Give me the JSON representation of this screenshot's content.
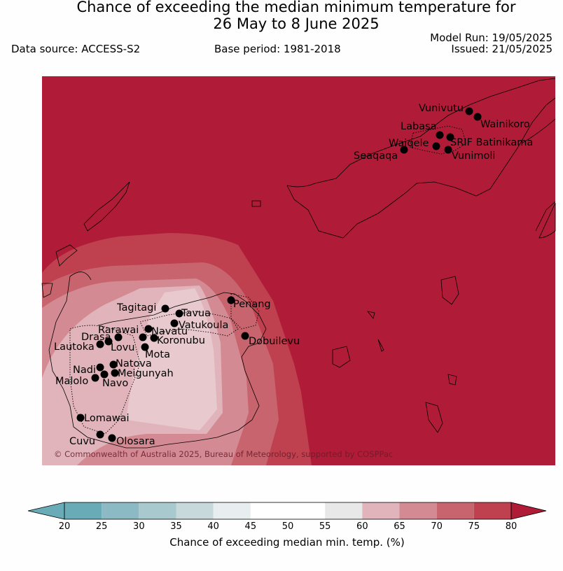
{
  "header": {
    "title_line1": "Chance of exceeding the median minimum temperature for",
    "title_line2": "26 May to 8 June 2025",
    "model_run": "Model Run: 19/05/2025",
    "issued": "Issued: 21/05/2025",
    "data_source": "Data source: ACCESS-S2",
    "base_period": "Base period: 1981-2018"
  },
  "map": {
    "copyright": "© Commonwealth of Australia 2025, Bureau of Meteorology, supported by COSPPac",
    "stations": [
      "Vunivutu",
      "Wainikoro",
      "Labasa",
      "SRIF Batinikama",
      "Waiqele",
      "Seaqaqa",
      "Vunimoli",
      "Penang",
      "Tagitagi",
      "Tavua",
      "Vatukoula",
      "Rarawai",
      "Navatu",
      "Koronubu",
      "Drasa",
      "Lovu",
      "Lautoka",
      "Mota",
      "Dobuilevu",
      "Natova",
      "Nadi",
      "Meigunyah",
      "Malolo",
      "Navo",
      "Lomawai",
      "Cuvu",
      "Olosara"
    ]
  },
  "colorbar": {
    "title": "Chance of exceeding median min. temp. (%)",
    "ticks": [
      "20",
      "25",
      "30",
      "35",
      "40",
      "45",
      "50",
      "55",
      "60",
      "65",
      "70",
      "75",
      "80"
    ],
    "colors": [
      "#6aabb8",
      "#8bbac4",
      "#a8c9ce",
      "#c7d9db",
      "#e8eef0",
      "#ffffff",
      "#ffffff",
      "#e8e8e8",
      "#e0b4ba",
      "#d38a92",
      "#c8646e",
      "#bf404e",
      "#b01c38"
    ]
  }
}
